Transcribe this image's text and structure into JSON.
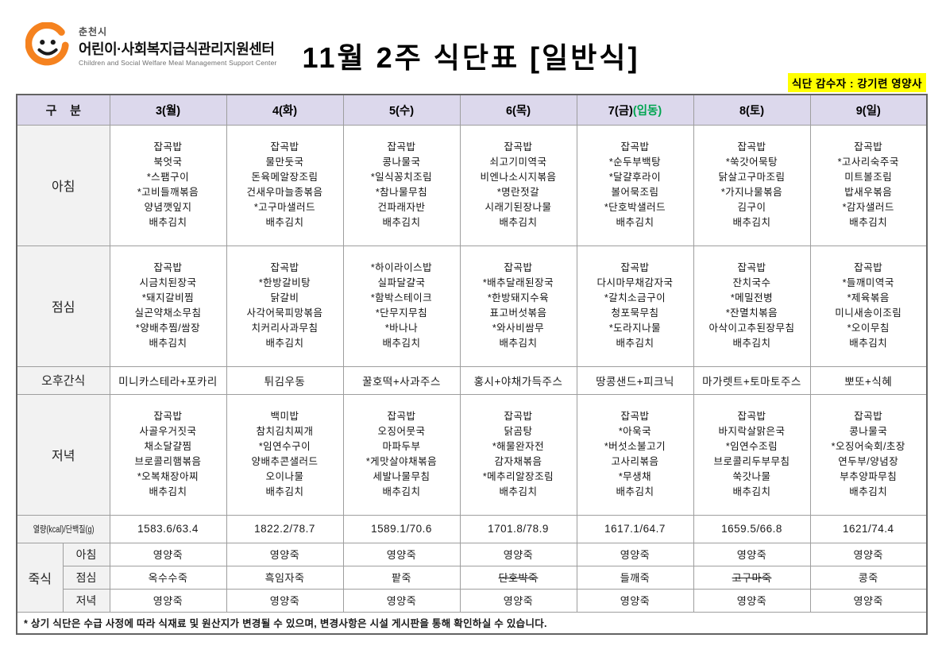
{
  "logo": {
    "city": "춘천시",
    "org": "어린이·사회복지급식관리지원센터",
    "org_en": "Children and Social Welfare Meal Management Support Center"
  },
  "title": "11월 2주 식단표 [일반식]",
  "supervisor": "식단 감수자 : 강기련 영양사",
  "colors": {
    "header_bg": "#dcd8ec",
    "label_bg": "#f2f2f2",
    "highlight_yellow": "#ffff00",
    "holiday_green": "#00a550",
    "logo_orange": "#f5821f"
  },
  "menu": {
    "row_labels": {
      "corner": "구    분",
      "breakfast": "아침",
      "lunch": "점심",
      "snack": "오후간식",
      "dinner": "저녁",
      "nutrition": "열량(kcal)/단백질(g)",
      "porridge": "죽식",
      "porridge_breakfast": "아침",
      "porridge_lunch": "점심",
      "porridge_dinner": "저녁"
    },
    "days": [
      {
        "label": "3(월)"
      },
      {
        "label": "4(화)"
      },
      {
        "label": "5(수)"
      },
      {
        "label": "6(목)"
      },
      {
        "label": "7(금)",
        "note": "(입동)"
      },
      {
        "label": "8(토)"
      },
      {
        "label": "9(일)"
      }
    ],
    "breakfast": [
      [
        "잡곡밥",
        "북엇국",
        "*스팸구이",
        "*고비들깨볶음",
        "양념깻잎지",
        "배추김치"
      ],
      [
        "잡곡밥",
        "물만둣국",
        "돈육메알장조림",
        "건새우마늘종볶음",
        "*고구마샐러드",
        "배추김치"
      ],
      [
        "잡곡밥",
        "콩나물국",
        "*일식꽁치조림",
        "*참나물무침",
        "건파래자반",
        "배추김치"
      ],
      [
        "잡곡밥",
        "쇠고기미역국",
        "비엔나소시지볶음",
        "*명란젓갈",
        "시래기된장나물",
        "배추김치"
      ],
      [
        "잡곡밥",
        "*순두부백탕",
        "*달걀후라이",
        "볼어묵조림",
        "*단호박샐러드",
        "배추김치"
      ],
      [
        "잡곡밥",
        "*쑥갓어묵탕",
        "닭살고구마조림",
        "*가지나물볶음",
        "김구이",
        "배추김치"
      ],
      [
        "잡곡밥",
        "*고사리숙주국",
        "미트볼조림",
        "밥새우볶음",
        "*감자샐러드",
        "배추김치"
      ]
    ],
    "lunch": [
      [
        "잡곡밥",
        "시금치된장국",
        "*돼지갈비찜",
        "실곤약채소무침",
        "*양배추찜/쌈장",
        "배추김치"
      ],
      [
        "잡곡밥",
        "*한방갈비탕",
        "닭갈비",
        "사각어묵피망볶음",
        "치커리사과무침",
        "배추김치"
      ],
      [
        "*하이라이스밥",
        "실파달걀국",
        "*함박스테이크",
        "*단무지무침",
        "*바나나",
        "배추김치"
      ],
      [
        "잡곡밥",
        "*배추달래된장국",
        "*한방돼지수육",
        "표고버섯볶음",
        "*와사비쌈무",
        "배추김치"
      ],
      [
        "잡곡밥",
        "다시마무채감자국",
        "*갈치소금구이",
        "청포묵무침",
        "*도라지나물",
        "배추김치"
      ],
      [
        "잡곡밥",
        "잔치국수",
        "*메밀전병",
        "*잔멸치볶음",
        "아삭이고추된장무침",
        "배추김치"
      ],
      [
        "잡곡밥",
        "*들깨미역국",
        "*제육볶음",
        "미니새송이조림",
        "*오이무침",
        "배추김치"
      ]
    ],
    "snack": [
      {
        "text": "미니카스테라+포카리"
      },
      {
        "text": "튀김우동"
      },
      {
        "text": "꿀호떡+사과주스"
      },
      {
        "text": "홍시+야채가득주스"
      },
      {
        "text": "땅콩샌드+피크닉"
      },
      {
        "text": "마가렛트+토마토주스"
      },
      {
        "text": "뽀또+식혜"
      }
    ],
    "dinner": [
      [
        "잡곡밥",
        "사골우거짓국",
        "채소달걀찜",
        "브로콜리햄볶음",
        "*오복채장아찌",
        "배추김치"
      ],
      [
        "백미밥",
        "참치김치찌개",
        "*임연수구이",
        "양배추콘샐러드",
        "오이나물",
        "배추김치"
      ],
      [
        "잡곡밥",
        "오징어뭇국",
        "마파두부",
        "*게맛살야채볶음",
        "세발나물무침",
        "배추김치"
      ],
      [
        "잡곡밥",
        "닭곰탕",
        "*해물완자전",
        "감자채볶음",
        "*메추리알장조림",
        "배추김치"
      ],
      [
        "잡곡밥",
        "*아욱국",
        "*버섯소불고기",
        "고사리볶음",
        "*무생채",
        "배추김치"
      ],
      [
        "잡곡밥",
        "바지락살맑은국",
        "*임연수조림",
        "브로콜리두부무침",
        "쑥갓나물",
        "배추김치"
      ],
      [
        "잡곡밥",
        "콩나물국",
        "*오징어숙회/초장",
        "연두부/양념장",
        "부추양파무침",
        "배추김치"
      ]
    ],
    "nutrition": [
      {
        "text": "1583.6/63.4"
      },
      {
        "text": "1822.2/78.7"
      },
      {
        "text": "1589.1/70.6"
      },
      {
        "text": "1701.8/78.9"
      },
      {
        "text": "1617.1/64.7"
      },
      {
        "text": "1659.5/66.8"
      },
      {
        "text": "1621/74.4"
      }
    ],
    "porridge": {
      "breakfast": [
        {
          "text": "영양죽"
        },
        {
          "text": "영양죽"
        },
        {
          "text": "영양죽"
        },
        {
          "text": "영양죽"
        },
        {
          "text": "영양죽"
        },
        {
          "text": "영양죽"
        },
        {
          "text": "영양죽"
        }
      ],
      "lunch": [
        {
          "text": "옥수수죽"
        },
        {
          "text": "흑임자죽"
        },
        {
          "text": "팥죽"
        },
        {
          "text": "단호박죽",
          "strike": true
        },
        {
          "text": "들깨죽"
        },
        {
          "text": "고구마죽",
          "strike": true
        },
        {
          "text": "콩죽"
        }
      ],
      "dinner": [
        {
          "text": "영양죽"
        },
        {
          "text": "영양죽"
        },
        {
          "text": "영양죽"
        },
        {
          "text": "영양죽"
        },
        {
          "text": "영양죽"
        },
        {
          "text": "영양죽"
        },
        {
          "text": "영양죽"
        }
      ]
    },
    "footnote": "* 상기 식단은 수급 사정에 따라 식재료 및 원산지가 변경될 수 있으며, 변경사항은 시설 게시판을 통해 확인하실 수 있습니다."
  }
}
